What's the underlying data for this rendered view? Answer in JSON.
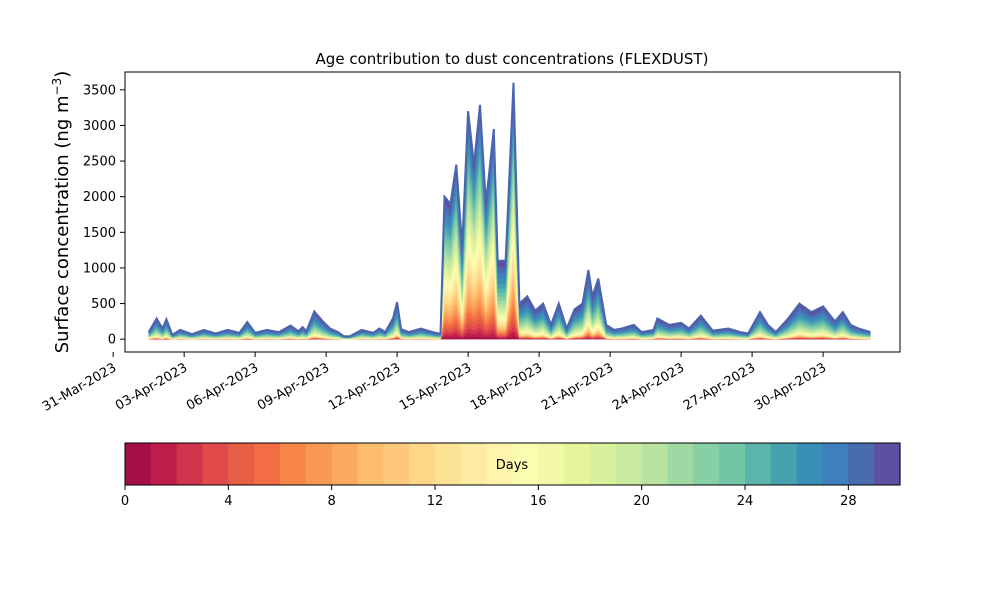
{
  "chart_data": {
    "type": "area",
    "stacked": true,
    "title": "Age contribution to dust concentrations (FLEXDUST)",
    "ylabel_main": "Surface concentration (ng m",
    "ylabel_sup": "−3",
    "ylabel_close": ")",
    "xlabel": "",
    "ylim": [
      -180,
      3750
    ],
    "yticks": [
      0,
      500,
      1000,
      1500,
      2000,
      2500,
      3000,
      3500
    ],
    "x_range": [
      "2023-03-31T12:00",
      "2023-05-03T06:00"
    ],
    "x_tick_labels": [
      "31-Mar-2023",
      "03-Apr-2023",
      "06-Apr-2023",
      "09-Apr-2023",
      "12-Apr-2023",
      "15-Apr-2023",
      "18-Apr-2023",
      "21-Apr-2023",
      "24-Apr-2023",
      "27-Apr-2023",
      "30-Apr-2023"
    ],
    "x_tick_dates": [
      "2023-03-31",
      "2023-04-03",
      "2023-04-06",
      "2023-04-09",
      "2023-04-12",
      "2023-04-15",
      "2023-04-18",
      "2023-04-21",
      "2023-04-24",
      "2023-04-27",
      "2023-04-30"
    ],
    "grid": false,
    "total_series": {
      "name": "",
      "points": [
        [
          "2023-04-01T12:00",
          100
        ],
        [
          "2023-04-01T20:00",
          290
        ],
        [
          "2023-04-02T02:00",
          150
        ],
        [
          "2023-04-02T06:00",
          280
        ],
        [
          "2023-04-02T12:00",
          60
        ],
        [
          "2023-04-02T20:00",
          130
        ],
        [
          "2023-04-03T08:00",
          70
        ],
        [
          "2023-04-03T20:00",
          130
        ],
        [
          "2023-04-04T08:00",
          80
        ],
        [
          "2023-04-04T20:00",
          130
        ],
        [
          "2023-04-05T08:00",
          90
        ],
        [
          "2023-04-05T16:00",
          240
        ],
        [
          "2023-04-06T00:00",
          90
        ],
        [
          "2023-04-06T12:00",
          130
        ],
        [
          "2023-04-07T00:00",
          100
        ],
        [
          "2023-04-07T12:00",
          190
        ],
        [
          "2023-04-07T20:00",
          110
        ],
        [
          "2023-04-08T00:00",
          170
        ],
        [
          "2023-04-08T04:00",
          110
        ],
        [
          "2023-04-08T12:00",
          390
        ],
        [
          "2023-04-08T20:00",
          260
        ],
        [
          "2023-04-09T04:00",
          150
        ],
        [
          "2023-04-09T12:00",
          100
        ],
        [
          "2023-04-09T18:00",
          40
        ],
        [
          "2023-04-10T00:00",
          40
        ],
        [
          "2023-04-10T12:00",
          130
        ],
        [
          "2023-04-11T00:00",
          90
        ],
        [
          "2023-04-11T06:00",
          150
        ],
        [
          "2023-04-11T12:00",
          100
        ],
        [
          "2023-04-11T20:00",
          300
        ],
        [
          "2023-04-12T00:00",
          520
        ],
        [
          "2023-04-12T04:00",
          140
        ],
        [
          "2023-04-12T12:00",
          100
        ],
        [
          "2023-04-13T00:00",
          150
        ],
        [
          "2023-04-13T12:00",
          100
        ],
        [
          "2023-04-13T18:00",
          80
        ],
        [
          "2023-04-13T20:00",
          80
        ],
        [
          "2023-04-14T00:00",
          2000
        ],
        [
          "2023-04-14T06:00",
          1900
        ],
        [
          "2023-04-14T12:00",
          2450
        ],
        [
          "2023-04-14T18:00",
          1300
        ],
        [
          "2023-04-15T00:00",
          3200
        ],
        [
          "2023-04-15T06:00",
          2450
        ],
        [
          "2023-04-15T12:00",
          3290
        ],
        [
          "2023-04-15T18:00",
          1900
        ],
        [
          "2023-04-16T02:00",
          2950
        ],
        [
          "2023-04-16T06:00",
          1100
        ],
        [
          "2023-04-16T14:00",
          1100
        ],
        [
          "2023-04-16T22:00",
          3600
        ],
        [
          "2023-04-17T04:00",
          500
        ],
        [
          "2023-04-17T12:00",
          600
        ],
        [
          "2023-04-17T20:00",
          400
        ],
        [
          "2023-04-18T04:00",
          500
        ],
        [
          "2023-04-18T12:00",
          200
        ],
        [
          "2023-04-18T20:00",
          500
        ],
        [
          "2023-04-19T04:00",
          150
        ],
        [
          "2023-04-19T12:00",
          420
        ],
        [
          "2023-04-19T20:00",
          500
        ],
        [
          "2023-04-20T02:00",
          970
        ],
        [
          "2023-04-20T06:00",
          600
        ],
        [
          "2023-04-20T12:00",
          850
        ],
        [
          "2023-04-20T20:00",
          200
        ],
        [
          "2023-04-21T04:00",
          130
        ],
        [
          "2023-04-21T12:00",
          150
        ],
        [
          "2023-04-22T00:00",
          200
        ],
        [
          "2023-04-22T08:00",
          100
        ],
        [
          "2023-04-22T20:00",
          130
        ],
        [
          "2023-04-23T00:00",
          290
        ],
        [
          "2023-04-23T12:00",
          200
        ],
        [
          "2023-04-24T00:00",
          230
        ],
        [
          "2023-04-24T08:00",
          150
        ],
        [
          "2023-04-24T20:00",
          330
        ],
        [
          "2023-04-25T08:00",
          120
        ],
        [
          "2023-04-26T00:00",
          150
        ],
        [
          "2023-04-26T12:00",
          100
        ],
        [
          "2023-04-26T20:00",
          80
        ],
        [
          "2023-04-27T08:00",
          380
        ],
        [
          "2023-04-27T16:00",
          200
        ],
        [
          "2023-04-28T00:00",
          100
        ],
        [
          "2023-04-28T12:00",
          280
        ],
        [
          "2023-04-29T00:00",
          500
        ],
        [
          "2023-04-29T12:00",
          380
        ],
        [
          "2023-04-30T00:00",
          460
        ],
        [
          "2023-04-30T12:00",
          250
        ],
        [
          "2023-04-30T20:00",
          380
        ],
        [
          "2023-05-01T04:00",
          200
        ],
        [
          "2023-05-01T12:00",
          150
        ],
        [
          "2023-05-02T00:00",
          100
        ]
      ]
    },
    "age_bins_days": [
      0,
      1,
      2,
      3,
      4,
      5,
      6,
      7,
      8,
      9,
      10,
      11,
      12,
      13,
      14,
      15,
      16,
      17,
      18,
      19,
      20,
      21,
      22,
      23,
      24,
      25,
      26,
      27,
      28,
      29,
      30
    ],
    "colorbar": {
      "label": "Days",
      "vmin": 0,
      "vmax": 30,
      "ticks": [
        0,
        4,
        8,
        12,
        16,
        20,
        24,
        28
      ],
      "colors": [
        "#a50f48",
        "#bf1e4a",
        "#d1334b",
        "#e04a4b",
        "#e85e45",
        "#f36c43",
        "#f78448",
        "#fb9754",
        "#fda85f",
        "#fdbb6c",
        "#fdc87a",
        "#fed788",
        "#fee295",
        "#feeaa0",
        "#fff4ac",
        "#fcfcb0",
        "#f3f9a8",
        "#e6f59c",
        "#d8ef9b",
        "#c9e99e",
        "#b7e2a1",
        "#9fd8a3",
        "#87cfa4",
        "#73c6a5",
        "#5bb5aa",
        "#45a2ae",
        "#3a8fb9",
        "#3f7fbc",
        "#4a6bb0",
        "#5e4fa2"
      ]
    }
  }
}
